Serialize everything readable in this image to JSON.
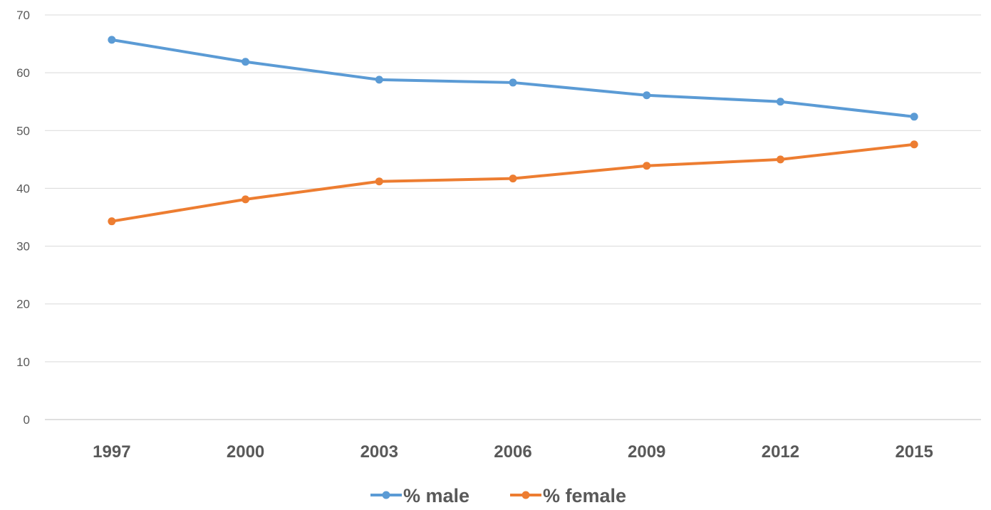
{
  "chart_data": {
    "type": "line",
    "categories": [
      "1997",
      "2000",
      "2003",
      "2006",
      "2009",
      "2012",
      "2015"
    ],
    "series": [
      {
        "name": "% male",
        "color": "#5B9BD5",
        "values": [
          65.7,
          61.9,
          58.8,
          58.3,
          56.1,
          55.0,
          52.4
        ]
      },
      {
        "name": "% female",
        "color": "#ED7D31",
        "values": [
          34.3,
          38.1,
          41.2,
          41.7,
          43.9,
          45.0,
          47.6
        ]
      }
    ],
    "yticks": [
      "0",
      "10",
      "20",
      "30",
      "40",
      "50",
      "60",
      "70"
    ],
    "ylim": [
      0,
      70
    ],
    "grid": true,
    "legend": "bottom",
    "title": "",
    "xlabel": "",
    "ylabel": ""
  }
}
